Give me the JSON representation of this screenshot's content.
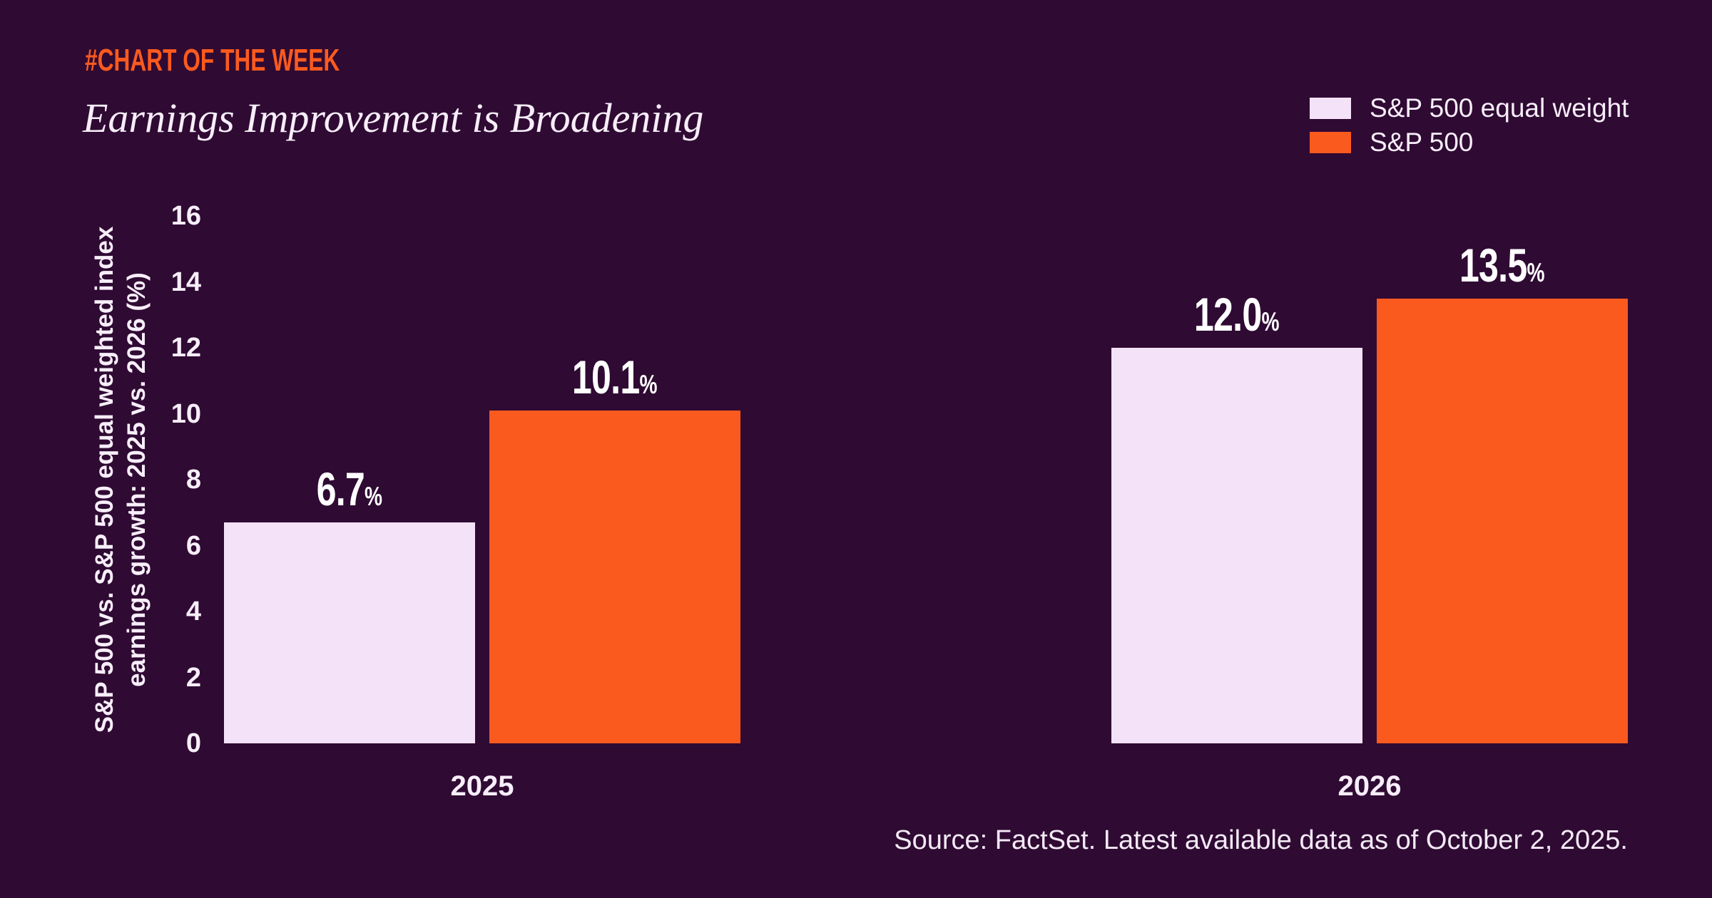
{
  "header": {
    "kicker": "#CHART OF THE WEEK",
    "title": "Earnings Improvement is Broadening"
  },
  "legend": [
    {
      "label": "S&P 500 equal weight",
      "color": "#f3e2f8"
    },
    {
      "label": "S&P 500",
      "color": "#fb5a1e"
    }
  ],
  "chart_data": {
    "type": "bar",
    "categories": [
      "2025",
      "2026"
    ],
    "series": [
      {
        "name": "S&P 500 equal weight",
        "values": [
          6.7,
          12.0
        ],
        "color": "#f3e2f8"
      },
      {
        "name": "S&P 500",
        "values": [
          10.1,
          13.5
        ],
        "color": "#fb5a1e"
      }
    ],
    "value_labels": [
      [
        "6.7",
        "12.0"
      ],
      [
        "10.1",
        "13.5"
      ]
    ],
    "value_suffix": "%",
    "title": "Earnings Improvement is Broadening",
    "xlabel": "",
    "ylabel_line1": "S&P 500 vs. S&P 500 equal weighted index",
    "ylabel_line2": "earnings growth: 2025 vs. 2026 (%)",
    "yticks": [
      0,
      2,
      4,
      6,
      8,
      10,
      12,
      14,
      16
    ],
    "ylim": [
      0,
      16
    ],
    "grid": "off",
    "legend_position": "top-right",
    "background": "#2f0a33"
  },
  "footer": {
    "source": "Source: FactSet. Latest available data as of October 2, 2025."
  }
}
